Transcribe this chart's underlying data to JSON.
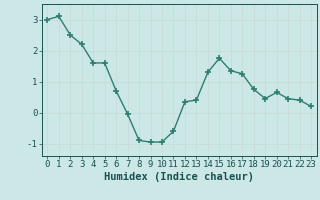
{
  "x": [
    0,
    1,
    2,
    3,
    4,
    5,
    6,
    7,
    8,
    9,
    10,
    11,
    12,
    13,
    14,
    15,
    16,
    17,
    18,
    19,
    20,
    21,
    22,
    23
  ],
  "y": [
    3.0,
    3.1,
    2.5,
    2.2,
    1.6,
    1.6,
    0.7,
    -0.05,
    -0.9,
    -0.95,
    -0.95,
    -0.6,
    0.35,
    0.4,
    1.3,
    1.75,
    1.35,
    1.25,
    0.75,
    0.45,
    0.65,
    0.45,
    0.4,
    0.2
  ],
  "line_color": "#2e7d6e",
  "marker": "+",
  "marker_size": 4,
  "bg_color": "#cce8e6",
  "grid_color_major": "#b8d4d2",
  "grid_color_minor": "#daecea",
  "xlabel": "Humidex (Indice chaleur)",
  "xlabel_color": "#1a5050",
  "xlabel_fontsize": 7.5,
  "tick_color": "#1a5050",
  "tick_fontsize": 6.5,
  "xlim": [
    -0.5,
    23.5
  ],
  "ylim": [
    -1.4,
    3.5
  ],
  "yticks": [
    -1,
    0,
    1,
    2,
    3
  ],
  "xticks": [
    0,
    1,
    2,
    3,
    4,
    5,
    6,
    7,
    8,
    9,
    10,
    11,
    12,
    13,
    14,
    15,
    16,
    17,
    18,
    19,
    20,
    21,
    22,
    23
  ]
}
